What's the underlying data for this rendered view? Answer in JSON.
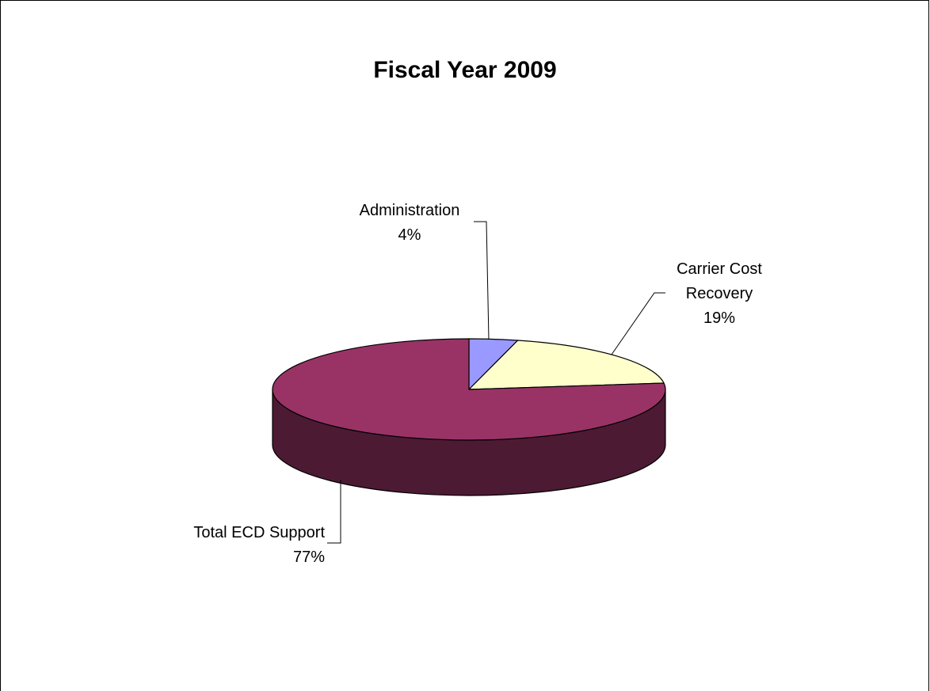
{
  "chart_data": {
    "type": "pie",
    "title": "Fiscal Year 2009",
    "style": "3d",
    "legend": "none",
    "slices": [
      {
        "label_lines": [
          "Administration"
        ],
        "pct_label": "4%",
        "value": 4,
        "color": "#9999ff",
        "side_color": "#5c5c99"
      },
      {
        "label_lines": [
          "Carrier Cost",
          "Recovery"
        ],
        "pct_label": "19%",
        "value": 19,
        "color": "#ffffcc",
        "side_color": "#99997a"
      },
      {
        "label_lines": [
          "Total ECD Support"
        ],
        "pct_label": "77%",
        "value": 77,
        "color": "#993366",
        "side_color": "#4d1a33"
      }
    ]
  }
}
